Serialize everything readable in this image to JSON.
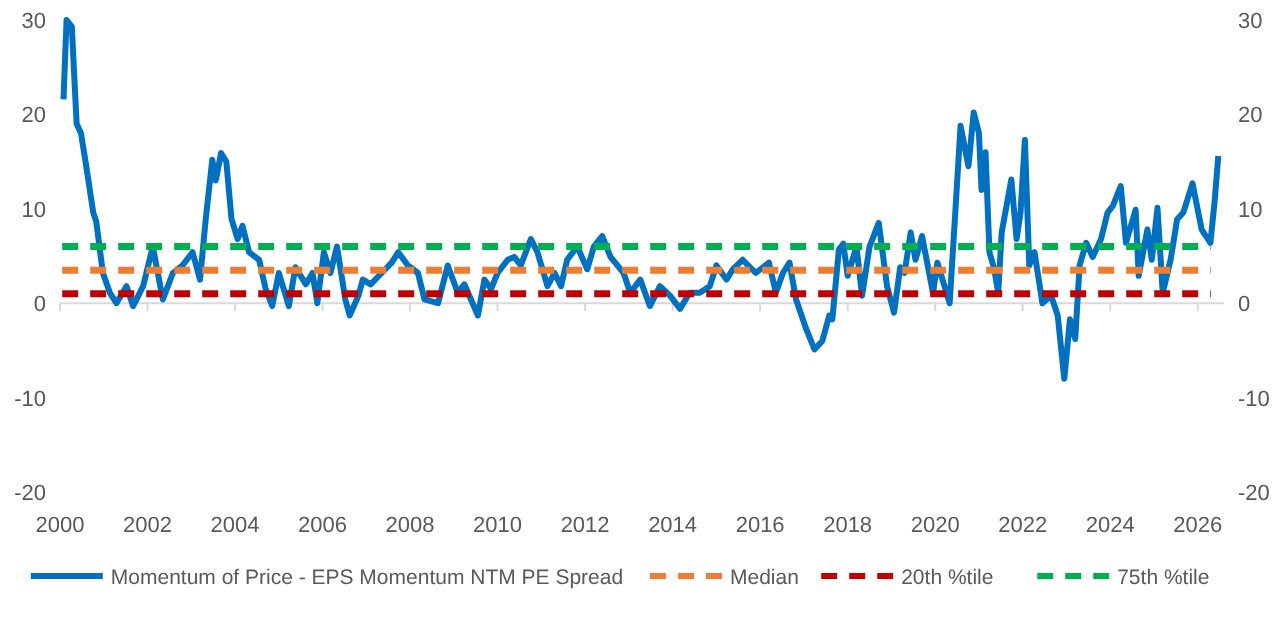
{
  "chart_data": {
    "type": "line",
    "xlim": [
      2000,
      2026.6
    ],
    "xticks": [
      2000,
      2002,
      2004,
      2006,
      2008,
      2010,
      2012,
      2014,
      2016,
      2018,
      2020,
      2022,
      2024,
      2026
    ],
    "ylim": [
      -20,
      30
    ],
    "yticks": [
      -20,
      -10,
      0,
      10,
      20,
      30
    ],
    "y2lim": [
      -20,
      30
    ],
    "y2ticks": [
      -20,
      -10,
      0,
      10,
      20,
      30
    ],
    "legend": "bottom",
    "series": [
      {
        "name": "Momentum of Price - EPS Momentum NTM PE Spread",
        "color": "#0070c0",
        "line_style": "solid",
        "x": [
          2000.08,
          2000.15,
          2000.27,
          2000.38,
          2000.48,
          2000.6,
          2000.76,
          2000.83,
          2000.98,
          2001.14,
          2001.29,
          2001.52,
          2001.67,
          2001.9,
          2002.12,
          2002.35,
          2002.58,
          2002.8,
          2003.03,
          2003.2,
          2003.33,
          2003.48,
          2003.56,
          2003.68,
          2003.8,
          2003.92,
          2004.06,
          2004.17,
          2004.32,
          2004.55,
          2004.7,
          2004.85,
          2005,
          2005.23,
          2005.38,
          2005.62,
          2005.77,
          2005.88,
          2006.03,
          2006.18,
          2006.33,
          2006.52,
          2006.62,
          2006.82,
          2006.92,
          2007.1,
          2007.35,
          2007.58,
          2007.73,
          2007.95,
          2008.18,
          2008.33,
          2008.64,
          2008.86,
          2009.09,
          2009.24,
          2009.55,
          2009.7,
          2009.85,
          2010,
          2010.23,
          2010.38,
          2010.53,
          2010.76,
          2010.91,
          2011.14,
          2011.3,
          2011.45,
          2011.59,
          2011.82,
          2012.05,
          2012.2,
          2012.39,
          2012.58,
          2012.88,
          2013.03,
          2013.26,
          2013.48,
          2013.71,
          2013.94,
          2014.17,
          2014.39,
          2014.62,
          2014.85,
          2015,
          2015.23,
          2015.38,
          2015.6,
          2015.9,
          2016.2,
          2016.36,
          2016.52,
          2016.67,
          2016.82,
          2017.05,
          2017.24,
          2017.42,
          2017.58,
          2017.65,
          2017.8,
          2017.9,
          2018,
          2018.2,
          2018.33,
          2018.5,
          2018.71,
          2018.9,
          2019.06,
          2019.2,
          2019.3,
          2019.44,
          2019.55,
          2019.7,
          2019.95,
          2020.05,
          2020.33,
          2020.45,
          2020.58,
          2020.76,
          2020.88,
          2021,
          2021.06,
          2021.15,
          2021.24,
          2021.35,
          2021.44,
          2021.52,
          2021.74,
          2021.86,
          2021.95,
          2022.05,
          2022.15,
          2022.27,
          2022.45,
          2022.65,
          2022.8,
          2022.95,
          2023.08,
          2023.2,
          2023.3,
          2023.45,
          2023.6,
          2023.79,
          2023.94,
          2024.06,
          2024.24,
          2024.36,
          2024.58,
          2024.65,
          2024.85,
          2024.95,
          2025.08,
          2025.2,
          2025.38,
          2025.53,
          2025.67,
          2025.88,
          2026.09,
          2026.29,
          2026.39,
          2026.47
        ],
        "values": [
          21.6,
          30,
          29.3,
          19,
          18,
          14.5,
          9.6,
          8.6,
          3.2,
          1.1,
          0,
          1.8,
          -0.3,
          1.8,
          6,
          0.4,
          3.2,
          4,
          5.4,
          2.5,
          8.9,
          15.2,
          13,
          15.9,
          15,
          8.9,
          6.8,
          8.2,
          5.4,
          4.6,
          1.5,
          -0.3,
          3.2,
          -0.3,
          3.8,
          2,
          3.2,
          0,
          5.4,
          3.2,
          6,
          0.4,
          -1.3,
          0.8,
          2.5,
          2,
          3.2,
          4.3,
          5.4,
          4,
          3.2,
          0.4,
          0,
          4,
          1.1,
          2,
          -1.3,
          2.5,
          1.5,
          3.2,
          4.6,
          4.9,
          4,
          6.8,
          5.4,
          1.8,
          3.2,
          1.8,
          4.6,
          6,
          3.6,
          6,
          7.1,
          4.9,
          3.2,
          1.1,
          2.5,
          -0.3,
          1.8,
          0.8,
          -0.6,
          1.1,
          1.1,
          1.8,
          4,
          2.5,
          3.6,
          4.6,
          3.2,
          4.3,
          1.1,
          3.2,
          4.3,
          0.4,
          -2.7,
          -4.9,
          -4,
          -1.3,
          -1.7,
          5.7,
          6.3,
          2.9,
          6,
          0.8,
          6,
          8.5,
          1.8,
          -1,
          3.8,
          3.2,
          7.5,
          4.6,
          7.1,
          1.1,
          4.3,
          0,
          8.9,
          18.8,
          14.5,
          20.2,
          18,
          12,
          16,
          5.4,
          3.6,
          1.1,
          7.5,
          13.1,
          6.8,
          9.6,
          17.3,
          4,
          5.4,
          0,
          0.8,
          -1.3,
          -8,
          -1.7,
          -3.8,
          4,
          6.4,
          4.9,
          6.8,
          9.6,
          10.3,
          12.4,
          6.4,
          9.9,
          2.9,
          7.8,
          4.6,
          10.1,
          1.1,
          4.6,
          8.9,
          9.6,
          12.7,
          7.8,
          6.4,
          11,
          15.6
        ]
      },
      {
        "name": "Median",
        "color": "#ed7d31",
        "line_style": "dashed",
        "x": [
          2000.05,
          2026.3
        ],
        "values": [
          3.5,
          3.5
        ]
      },
      {
        "name": "20th %tile",
        "color": "#c00000",
        "line_style": "dashed",
        "x": [
          2000.05,
          2026.3
        ],
        "values": [
          1,
          1
        ]
      },
      {
        "name": "75th %tile",
        "color": "#00b050",
        "line_style": "dashed",
        "x": [
          2000.05,
          2026.3
        ],
        "values": [
          6,
          6
        ]
      }
    ]
  }
}
